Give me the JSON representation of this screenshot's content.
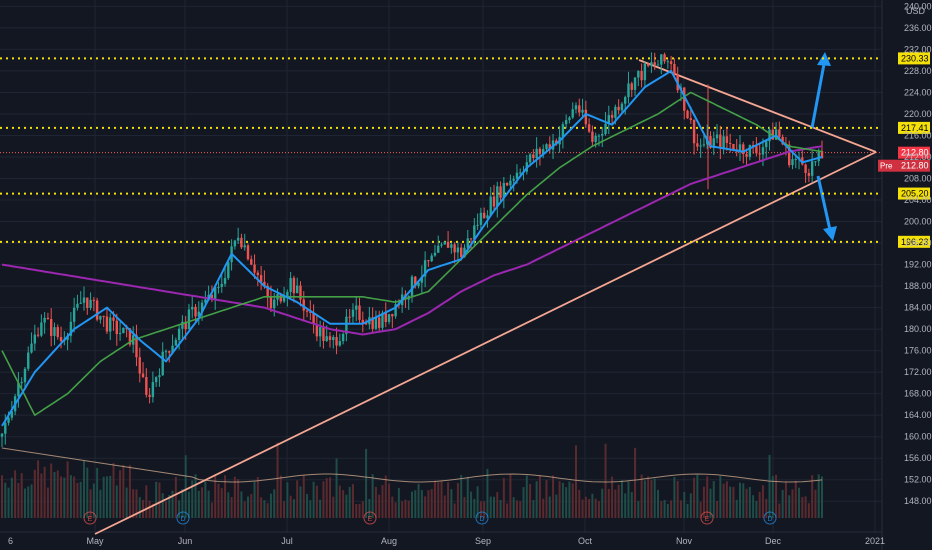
{
  "chart_data": {
    "type": "candlestick",
    "currency_label": "USD",
    "period_label": "6",
    "x_ticks": [
      "May",
      "Jun",
      "Jul",
      "Aug",
      "Sep",
      "Oct",
      "Nov",
      "Dec",
      "2021"
    ],
    "y_ticks": [
      148,
      152,
      156,
      160,
      164,
      168,
      172,
      176,
      180,
      184,
      188,
      192,
      196,
      200,
      204,
      208,
      212,
      216,
      220,
      224,
      228,
      232,
      236,
      240
    ],
    "ylim": [
      146,
      241
    ],
    "levels": [
      {
        "label": "230.33",
        "value": 230.33
      },
      {
        "label": "217.41",
        "value": 217.41
      },
      {
        "label": "205.20",
        "value": 205.2
      },
      {
        "label": "196.23",
        "value": 196.23
      }
    ],
    "current_price": {
      "label": "212.80",
      "value": 212.8
    },
    "prepost_badge": {
      "tag": "Pre",
      "label": "212.80"
    },
    "events": [
      "E",
      "D",
      "E",
      "D",
      "E",
      "D"
    ],
    "price_path": [
      [
        0,
        160
      ],
      [
        5,
        170
      ],
      [
        12,
        182
      ],
      [
        18,
        178
      ],
      [
        25,
        186
      ],
      [
        32,
        181
      ],
      [
        40,
        178
      ],
      [
        44,
        167
      ],
      [
        50,
        176
      ],
      [
        58,
        183
      ],
      [
        66,
        187
      ],
      [
        72,
        198
      ],
      [
        76,
        193
      ],
      [
        82,
        184
      ],
      [
        88,
        189
      ],
      [
        95,
        181
      ],
      [
        100,
        177
      ],
      [
        108,
        183
      ],
      [
        115,
        181
      ],
      [
        122,
        186
      ],
      [
        130,
        192
      ],
      [
        136,
        196
      ],
      [
        140,
        194
      ],
      [
        146,
        201
      ],
      [
        152,
        206
      ],
      [
        158,
        210
      ],
      [
        164,
        213
      ],
      [
        170,
        216
      ],
      [
        175,
        222
      ],
      [
        180,
        215
      ],
      [
        186,
        220
      ],
      [
        192,
        226
      ],
      [
        198,
        229
      ],
      [
        204,
        230
      ],
      [
        208,
        222
      ],
      [
        212,
        214
      ],
      [
        218,
        215
      ],
      [
        224,
        214
      ],
      [
        230,
        213
      ],
      [
        236,
        217
      ],
      [
        240,
        212
      ],
      [
        246,
        210
      ],
      [
        250,
        212
      ]
    ],
    "ma_fast": [
      [
        0,
        162
      ],
      [
        10,
        172
      ],
      [
        22,
        180
      ],
      [
        32,
        184
      ],
      [
        42,
        178
      ],
      [
        50,
        174
      ],
      [
        60,
        182
      ],
      [
        70,
        194
      ],
      [
        80,
        188
      ],
      [
        90,
        185
      ],
      [
        100,
        181
      ],
      [
        110,
        181
      ],
      [
        120,
        184
      ],
      [
        130,
        191
      ],
      [
        140,
        193
      ],
      [
        150,
        202
      ],
      [
        160,
        210
      ],
      [
        170,
        215
      ],
      [
        178,
        220
      ],
      [
        186,
        218
      ],
      [
        196,
        225
      ],
      [
        204,
        228
      ],
      [
        210,
        221
      ],
      [
        216,
        214
      ],
      [
        226,
        213
      ],
      [
        236,
        216
      ],
      [
        244,
        211
      ],
      [
        250,
        212
      ]
    ],
    "ma_mid": [
      [
        0,
        176
      ],
      [
        10,
        164
      ],
      [
        20,
        168
      ],
      [
        30,
        174
      ],
      [
        40,
        178
      ],
      [
        50,
        180
      ],
      [
        60,
        182
      ],
      [
        70,
        184
      ],
      [
        80,
        186
      ],
      [
        90,
        186
      ],
      [
        100,
        186
      ],
      [
        110,
        186
      ],
      [
        120,
        185
      ],
      [
        130,
        187
      ],
      [
        140,
        193
      ],
      [
        150,
        199
      ],
      [
        160,
        205
      ],
      [
        170,
        210
      ],
      [
        180,
        214
      ],
      [
        190,
        217
      ],
      [
        200,
        220
      ],
      [
        210,
        224
      ],
      [
        220,
        221
      ],
      [
        230,
        218
      ],
      [
        240,
        214
      ],
      [
        250,
        213
      ]
    ],
    "ma_slow": [
      [
        0,
        192
      ],
      [
        20,
        190
      ],
      [
        40,
        188
      ],
      [
        60,
        186
      ],
      [
        80,
        184
      ],
      [
        100,
        180
      ],
      [
        110,
        179
      ],
      [
        120,
        180
      ],
      [
        130,
        183
      ],
      [
        140,
        187
      ],
      [
        150,
        190
      ],
      [
        160,
        192
      ],
      [
        170,
        195
      ],
      [
        180,
        198
      ],
      [
        190,
        201
      ],
      [
        200,
        204
      ],
      [
        210,
        207
      ],
      [
        220,
        209
      ],
      [
        230,
        211
      ],
      [
        240,
        213
      ],
      [
        250,
        214
      ]
    ]
  }
}
